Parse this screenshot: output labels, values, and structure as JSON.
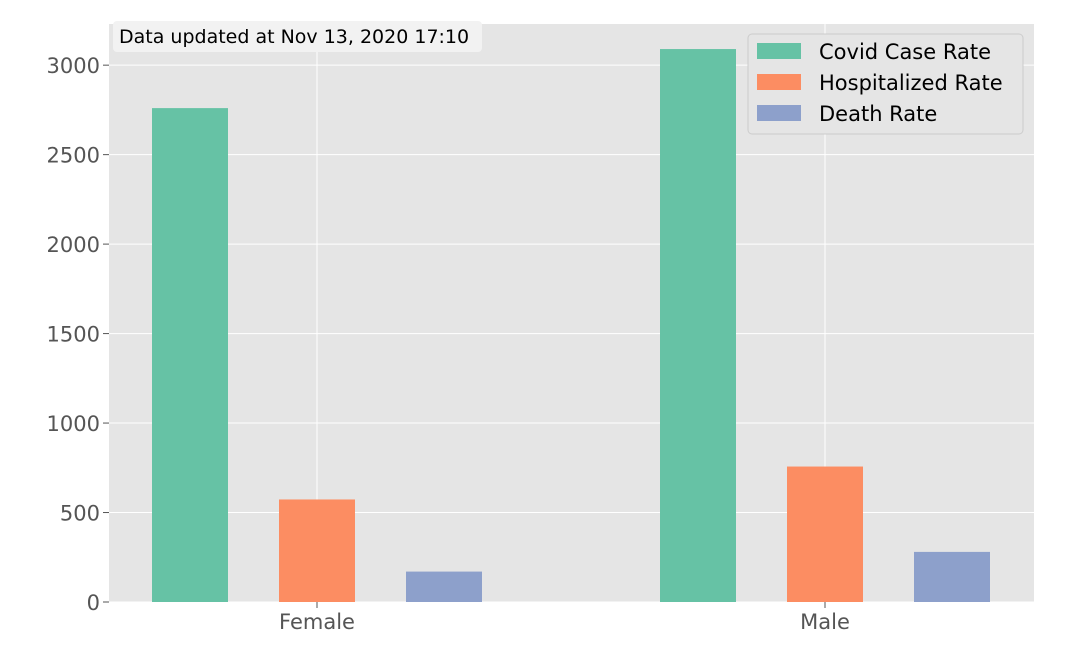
{
  "chart_data": {
    "type": "bar",
    "categories": [
      "Female",
      "Male"
    ],
    "series": [
      {
        "name": "Covid Case Rate",
        "values": [
          2760,
          3090
        ],
        "color": "#66c2a5"
      },
      {
        "name": "Hospitalized Rate",
        "values": [
          573,
          757
        ],
        "color": "#fc8d62"
      },
      {
        "name": "Death Rate",
        "values": [
          170,
          280
        ],
        "color": "#8da0cb"
      }
    ],
    "yticks": [
      0,
      500,
      1000,
      1500,
      2000,
      2500,
      3000
    ],
    "ylim": [
      0,
      3230
    ],
    "grid": true,
    "legend_placement": "top-right",
    "annotation": "Data updated at Nov 13, 2020 17:10",
    "colors": {
      "plot_background": "#e5e5e5",
      "grid": "#ffffff",
      "tick_text": "#555555"
    }
  }
}
